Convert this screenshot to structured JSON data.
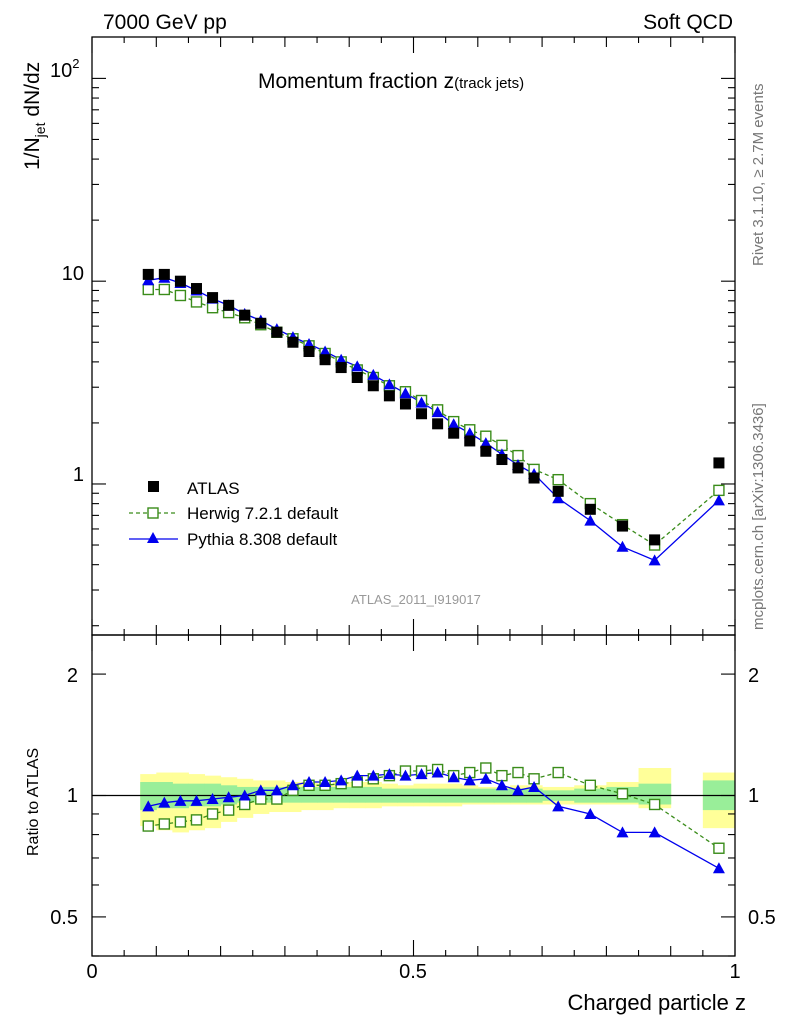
{
  "header": {
    "left": "7000 GeV pp",
    "right": "Soft QCD",
    "plot_title_main": "Momentum fraction z",
    "plot_title_sub": "(track jets)",
    "analysis_id": "ATLAS_2011_I919017"
  },
  "side_labels": {
    "rivet": "Rivet 3.1.10, ≥ 2.7M events",
    "mcplots": "mcplots.cern.ch [arXiv:1306.3436]"
  },
  "axes": {
    "ylabel_main_prefix": "1/N",
    "ylabel_main_sub": "jet",
    "ylabel_main_suffix": " dN/dz",
    "ylabel_ratio": "Ratio to ATLAS",
    "xlabel": "Charged particle z",
    "main_ticks": {
      "t100_base": "10",
      "t100_exp": "2",
      "t10": "10",
      "t1": "1"
    },
    "ratio_ticks": {
      "t2": "2",
      "t1": "1",
      "t05": "0.5"
    },
    "x_ticks": {
      "t0": "0",
      "t05": "0.5",
      "t1": "1"
    }
  },
  "legend": {
    "atlas": "ATLAS",
    "herwig": "Herwig 7.2.1 default",
    "pythia": "Pythia 8.308 default"
  },
  "colors": {
    "atlas": "#000000",
    "herwig": "#3a8c1a",
    "pythia": "#0000ee",
    "band_inner": "#99ee99",
    "band_outer": "#ffff99"
  },
  "chart_data": [
    {
      "type": "scatter",
      "panel": "main",
      "yscale": "log",
      "xlim": [
        0,
        1
      ],
      "ylim": [
        0.18,
        160
      ],
      "xlabel": "Charged particle z",
      "ylabel": "1/N_jet dN/dz",
      "x": [
        0.0875,
        0.1125,
        0.1375,
        0.1625,
        0.1875,
        0.2125,
        0.2375,
        0.2625,
        0.2875,
        0.3125,
        0.3375,
        0.3625,
        0.3875,
        0.4125,
        0.4375,
        0.4625,
        0.4875,
        0.5125,
        0.5375,
        0.5625,
        0.5875,
        0.6125,
        0.6375,
        0.6625,
        0.6875,
        0.725,
        0.775,
        0.825,
        0.875,
        0.975
      ],
      "series": [
        {
          "name": "ATLAS",
          "values": [
            10.8,
            10.8,
            10.0,
            9.2,
            8.3,
            7.6,
            6.8,
            6.2,
            5.6,
            5.0,
            4.5,
            4.1,
            3.75,
            3.35,
            3.05,
            2.72,
            2.48,
            2.22,
            1.98,
            1.78,
            1.63,
            1.45,
            1.32,
            1.2,
            1.07,
            0.92,
            0.75,
            0.62,
            0.53,
            1.27
          ]
        },
        {
          "name": "Herwig 7.2.1 default",
          "values": [
            9.1,
            9.1,
            8.5,
            7.9,
            7.4,
            7.0,
            6.6,
            6.1,
            5.6,
            5.2,
            4.8,
            4.4,
            4.0,
            3.65,
            3.35,
            3.05,
            2.85,
            2.58,
            2.32,
            2.03,
            1.85,
            1.72,
            1.55,
            1.38,
            1.18,
            1.05,
            0.8,
            0.63,
            0.5,
            0.93
          ]
        },
        {
          "name": "Pythia 8.308 default",
          "values": [
            10.1,
            10.4,
            9.8,
            9.0,
            8.2,
            7.6,
            6.9,
            6.4,
            5.8,
            5.3,
            4.9,
            4.5,
            4.1,
            3.8,
            3.45,
            3.1,
            2.8,
            2.52,
            2.26,
            1.97,
            1.78,
            1.59,
            1.4,
            1.24,
            1.12,
            0.85,
            0.66,
            0.49,
            0.42,
            0.83
          ]
        }
      ]
    },
    {
      "type": "scatter",
      "panel": "ratio",
      "yscale": "log",
      "xlim": [
        0,
        1
      ],
      "ylim": [
        0.4,
        2.5
      ],
      "xlabel": "Charged particle z",
      "ylabel": "Ratio to ATLAS",
      "x": [
        0.0875,
        0.1125,
        0.1375,
        0.1625,
        0.1875,
        0.2125,
        0.2375,
        0.2625,
        0.2875,
        0.3125,
        0.3375,
        0.3625,
        0.3875,
        0.4125,
        0.4375,
        0.4625,
        0.4875,
        0.5125,
        0.5375,
        0.5625,
        0.5875,
        0.6125,
        0.6375,
        0.6625,
        0.6875,
        0.725,
        0.775,
        0.825,
        0.875,
        0.975
      ],
      "series": [
        {
          "name": "Herwig 7.2.1 default",
          "values": [
            0.84,
            0.85,
            0.86,
            0.87,
            0.9,
            0.92,
            0.95,
            0.98,
            0.98,
            1.03,
            1.06,
            1.06,
            1.07,
            1.08,
            1.1,
            1.12,
            1.15,
            1.15,
            1.16,
            1.12,
            1.14,
            1.17,
            1.12,
            1.14,
            1.1,
            1.14,
            1.06,
            1.01,
            0.95,
            0.74
          ]
        },
        {
          "name": "Pythia 8.308 default",
          "values": [
            0.94,
            0.96,
            0.97,
            0.97,
            0.98,
            0.99,
            1.0,
            1.03,
            1.03,
            1.06,
            1.08,
            1.08,
            1.09,
            1.12,
            1.12,
            1.13,
            1.12,
            1.13,
            1.14,
            1.11,
            1.09,
            1.1,
            1.06,
            1.03,
            1.05,
            0.94,
            0.9,
            0.81,
            0.81,
            0.66
          ]
        }
      ],
      "uncertainty_bands": {
        "x_edges": [
          0.075,
          0.1,
          0.125,
          0.15,
          0.175,
          0.2,
          0.225,
          0.25,
          0.275,
          0.3,
          0.325,
          0.35,
          0.375,
          0.4,
          0.425,
          0.45,
          0.475,
          0.5,
          0.525,
          0.55,
          0.575,
          0.6,
          0.625,
          0.65,
          0.675,
          0.7,
          0.75,
          0.8,
          0.85,
          0.9,
          0.95,
          1.0
        ],
        "inner": [
          [
            0.92,
            1.08
          ],
          [
            0.93,
            1.08
          ],
          [
            0.93,
            1.07
          ],
          [
            0.94,
            1.07
          ],
          [
            0.94,
            1.07
          ],
          [
            0.95,
            1.06
          ],
          [
            0.96,
            1.05
          ],
          [
            0.96,
            1.05
          ],
          [
            0.96,
            1.05
          ],
          [
            0.96,
            1.05
          ],
          [
            0.96,
            1.05
          ],
          [
            0.96,
            1.05
          ],
          [
            0.96,
            1.05
          ],
          [
            0.96,
            1.05
          ],
          [
            0.96,
            1.05
          ],
          [
            0.96,
            1.04
          ],
          [
            0.96,
            1.04
          ],
          [
            0.96,
            1.04
          ],
          [
            0.96,
            1.04
          ],
          [
            0.96,
            1.04
          ],
          [
            0.96,
            1.04
          ],
          [
            0.96,
            1.04
          ],
          [
            0.96,
            1.04
          ],
          [
            0.96,
            1.04
          ],
          [
            0.96,
            1.04
          ],
          [
            0.97,
            1.03
          ],
          [
            0.96,
            1.04
          ],
          [
            0.96,
            1.05
          ],
          [
            0.95,
            1.07
          ],
          null,
          [
            0.92,
            1.09
          ]
        ],
        "outer": [
          [
            0.84,
            1.13
          ],
          [
            0.82,
            1.14
          ],
          [
            0.81,
            1.14
          ],
          [
            0.82,
            1.13
          ],
          [
            0.83,
            1.12
          ],
          [
            0.86,
            1.11
          ],
          [
            0.88,
            1.1
          ],
          [
            0.9,
            1.09
          ],
          [
            0.91,
            1.09
          ],
          [
            0.91,
            1.08
          ],
          [
            0.92,
            1.08
          ],
          [
            0.92,
            1.07
          ],
          [
            0.93,
            1.08
          ],
          [
            0.93,
            1.08
          ],
          [
            0.93,
            1.08
          ],
          [
            0.94,
            1.07
          ],
          [
            0.94,
            1.06
          ],
          [
            0.94,
            1.07
          ],
          [
            0.94,
            1.07
          ],
          [
            0.94,
            1.07
          ],
          [
            0.95,
            1.06
          ],
          [
            0.95,
            1.05
          ],
          [
            0.95,
            1.05
          ],
          [
            0.95,
            1.06
          ],
          [
            0.95,
            1.06
          ],
          [
            0.95,
            1.05
          ],
          [
            0.95,
            1.06
          ],
          [
            0.95,
            1.08
          ],
          [
            0.93,
            1.17
          ],
          null,
          [
            0.83,
            1.14
          ]
        ]
      }
    }
  ]
}
